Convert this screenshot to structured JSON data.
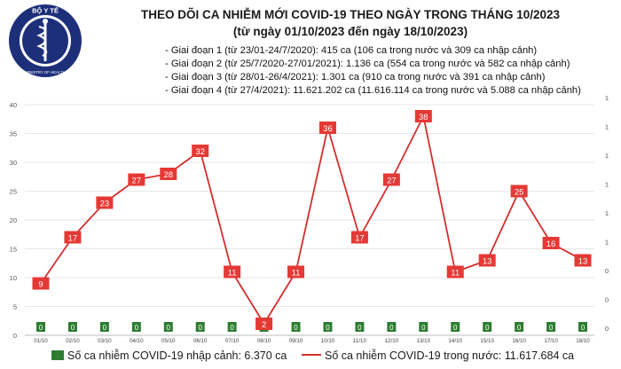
{
  "header": {
    "logo_text_top": "BỘ Y TẾ",
    "logo_text_bottom": "MINISTRY OF HEALTH",
    "title": "THEO DÕI CA NHIỄM MỚI COVID-19 THEO NGÀY TRONG THÁNG 10/2023",
    "subtitle": "(từ ngày 01/10/2023 đến ngày 18/10/2023)"
  },
  "phases": [
    "- Giai đoạn 1 (từ 23/01-24/7/2020): 415 ca (106 ca trong nước và 309 ca nhập cảnh)",
    "- Giai đoạn 2 (từ 25/7/2020-27/01/2021): 1.136 ca (554 ca trong nước và 582 ca nhập cảnh)",
    "- Giai đoạn 3 (từ 28/01-26/4/2021): 1.301 ca (910 ca trong nước và 391 ca nhập cảnh)",
    "- Giai đoạn 4 (từ 27/4/2021): 11.621.202 ca (11.616.114 ca trong nước và 5.088 ca nhập cảnh)"
  ],
  "legend": {
    "imported": "Số ca nhiễm COVID-19 nhập cảnh: 6.370 ca",
    "domestic": "Số ca nhiễm COVID-19 trong nước: 11.617.684 ca"
  },
  "colors": {
    "line": "#d32f2f",
    "label_box": "#e53935",
    "bar": "#2e7d32",
    "grid": "#e6e6e6"
  },
  "chart_data": {
    "type": "line",
    "x": [
      "01/10",
      "02/10",
      "03/10",
      "04/10",
      "05/10",
      "06/10",
      "07/10",
      "08/10",
      "09/10",
      "10/10",
      "11/10",
      "12/10",
      "13/10",
      "14/10",
      "15/10",
      "16/10",
      "17/10",
      "18/10"
    ],
    "series": [
      {
        "name": "Số ca nhiễm COVID-19 trong nước: 11.617.684 ca",
        "type": "line",
        "axis": "left",
        "values": [
          9,
          17,
          23,
          27,
          28,
          32,
          11,
          2,
          11,
          36,
          17,
          27,
          38,
          11,
          13,
          25,
          16,
          13
        ]
      },
      {
        "name": "Số ca nhiễm COVID-19 nhập cảnh: 6.370 ca",
        "type": "bar",
        "axis": "right",
        "values": [
          0,
          0,
          0,
          0,
          0,
          0,
          0,
          0,
          0,
          0,
          0,
          0,
          0,
          0,
          0,
          0,
          0,
          0
        ]
      }
    ],
    "left_axis": {
      "ylim": [
        0,
        40
      ],
      "ticks": [
        0,
        5,
        10,
        15,
        20,
        25,
        30,
        35,
        40
      ]
    },
    "right_axis": {
      "ylim": [
        0,
        1.2
      ],
      "tick_labels": [
        "0",
        "0",
        "0",
        "1",
        "1",
        "1",
        "1",
        "1",
        "1"
      ]
    },
    "grid": true,
    "legend_position": "bottom"
  }
}
